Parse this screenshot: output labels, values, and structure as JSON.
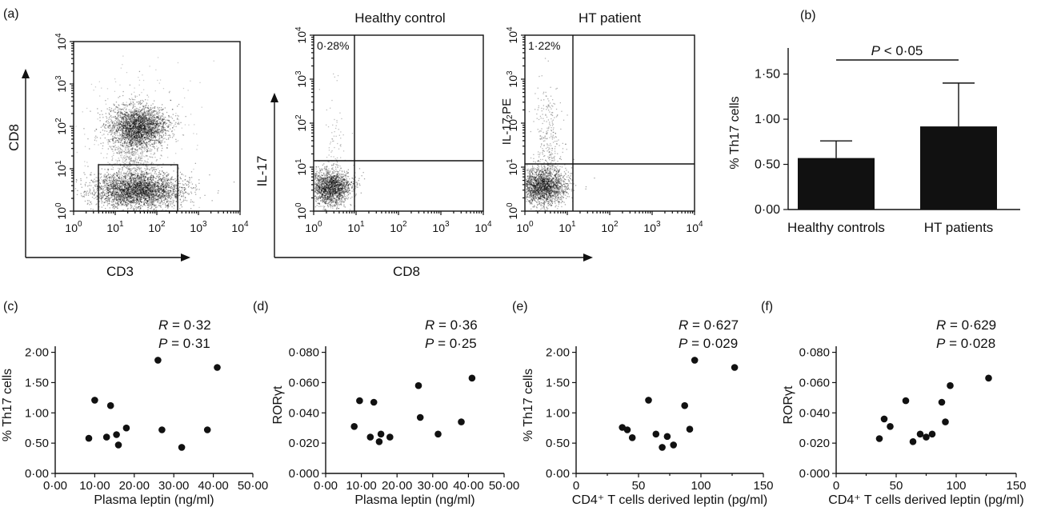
{
  "panel_a": {
    "label": "(a)",
    "plot1": {
      "xlabel": "CD3",
      "ylabel": "CD8",
      "xticks": [
        "10",
        "10",
        "10",
        "10",
        "10"
      ],
      "exps": [
        "0",
        "1",
        "2",
        "3",
        "4"
      ]
    },
    "plot2": {
      "title": "Healthy control",
      "gate_pct": "0·28%",
      "exps": [
        "0",
        "1",
        "2",
        "3",
        "4"
      ]
    },
    "plot3": {
      "title": "HT patient",
      "gate_pct": "1·22%",
      "ylabel": "IL-17 PE",
      "exps": [
        "0",
        "1",
        "2",
        "3",
        "4"
      ]
    },
    "shared_ylabel": "IL-17",
    "shared_xlabel": "CD8"
  },
  "chart_data": [
    {
      "panel": "(b)",
      "type": "bar",
      "categories": [
        "Healthy controls",
        "HT patients"
      ],
      "values": [
        0.57,
        0.92
      ],
      "errors": [
        0.19,
        0.48
      ],
      "ylabel": "% Th17 cells",
      "yticks": [
        "0·00",
        "0·50",
        "1·00",
        "1·50"
      ],
      "ylim": [
        0,
        1.7
      ],
      "annotation_italic": "P",
      "annotation_rest": " < 0·05"
    },
    {
      "panel": "(c)",
      "type": "scatter",
      "xlabel": "Plasma leptin (ng/ml)",
      "ylabel": "% Th17 cells",
      "xticks": [
        "0·00",
        "10·00",
        "20·00",
        "30·00",
        "40·00",
        "50·00"
      ],
      "yticks": [
        "0·00",
        "0·50",
        "1·00",
        "1·50",
        "2·00"
      ],
      "xlim": [
        0,
        50
      ],
      "ylim": [
        0,
        2.1
      ],
      "stat_r": "0·32",
      "stat_p": "0·31",
      "points": [
        [
          8.5,
          0.58
        ],
        [
          10,
          1.21
        ],
        [
          13,
          0.6
        ],
        [
          14,
          1.12
        ],
        [
          15.5,
          0.64
        ],
        [
          16,
          0.47
        ],
        [
          18,
          0.75
        ],
        [
          26,
          1.87
        ],
        [
          27,
          0.72
        ],
        [
          32,
          0.43
        ],
        [
          38.5,
          0.72
        ],
        [
          41,
          1.75
        ]
      ]
    },
    {
      "panel": "(d)",
      "type": "scatter",
      "xlabel": "Plasma leptin (ng/ml)",
      "ylabel": "RORγt",
      "xticks": [
        "0·00",
        "10·00",
        "20·00",
        "30·00",
        "40·00",
        "50·00"
      ],
      "yticks": [
        "0·000",
        "0·020",
        "0·040",
        "0·060",
        "0·080"
      ],
      "xlim": [
        0,
        50
      ],
      "ylim": [
        0,
        0.084
      ],
      "stat_r": "0·36",
      "stat_p": "0·25",
      "points": [
        [
          8,
          0.031
        ],
        [
          9.5,
          0.048
        ],
        [
          12.5,
          0.024
        ],
        [
          13.5,
          0.047
        ],
        [
          15,
          0.021
        ],
        [
          15.5,
          0.026
        ],
        [
          18,
          0.024
        ],
        [
          26,
          0.058
        ],
        [
          26.5,
          0.037
        ],
        [
          31.5,
          0.026
        ],
        [
          38,
          0.034
        ],
        [
          41,
          0.063
        ]
      ]
    },
    {
      "panel": "(e)",
      "type": "scatter",
      "xlabel": "CD4⁺ T cells derived leptin (pg/ml)",
      "ylabel": "% Th17 cells",
      "xticks": [
        "0",
        "50",
        "100",
        "150"
      ],
      "yticks": [
        "0·00",
        "0·50",
        "1·00",
        "1·50",
        "2·00"
      ],
      "xlim": [
        0,
        150
      ],
      "ylim": [
        0,
        2.1
      ],
      "stat_r": "0·627",
      "stat_p": "0·029",
      "points": [
        [
          37,
          0.76
        ],
        [
          41,
          0.72
        ],
        [
          45,
          0.59
        ],
        [
          58,
          1.21
        ],
        [
          64,
          0.65
        ],
        [
          69,
          0.43
        ],
        [
          73,
          0.61
        ],
        [
          78,
          0.47
        ],
        [
          87,
          1.12
        ],
        [
          91,
          0.73
        ],
        [
          95,
          1.87
        ],
        [
          127,
          1.75
        ]
      ]
    },
    {
      "panel": "(f)",
      "type": "scatter",
      "xlabel": "CD4⁺ T cells derived leptin (pg/ml)",
      "ylabel": "RORγt",
      "xticks": [
        "0",
        "50",
        "100",
        "150"
      ],
      "yticks": [
        "0·000",
        "0·020",
        "0·040",
        "0·060",
        "0·080"
      ],
      "xlim": [
        0,
        150
      ],
      "ylim": [
        0,
        0.084
      ],
      "stat_r": "0·629",
      "stat_p": "0·028",
      "points": [
        [
          36,
          0.023
        ],
        [
          40,
          0.036
        ],
        [
          45,
          0.031
        ],
        [
          58,
          0.048
        ],
        [
          64,
          0.021
        ],
        [
          70,
          0.026
        ],
        [
          75,
          0.024
        ],
        [
          80,
          0.026
        ],
        [
          88,
          0.047
        ],
        [
          91,
          0.034
        ],
        [
          95,
          0.058
        ],
        [
          127,
          0.063
        ]
      ]
    }
  ]
}
